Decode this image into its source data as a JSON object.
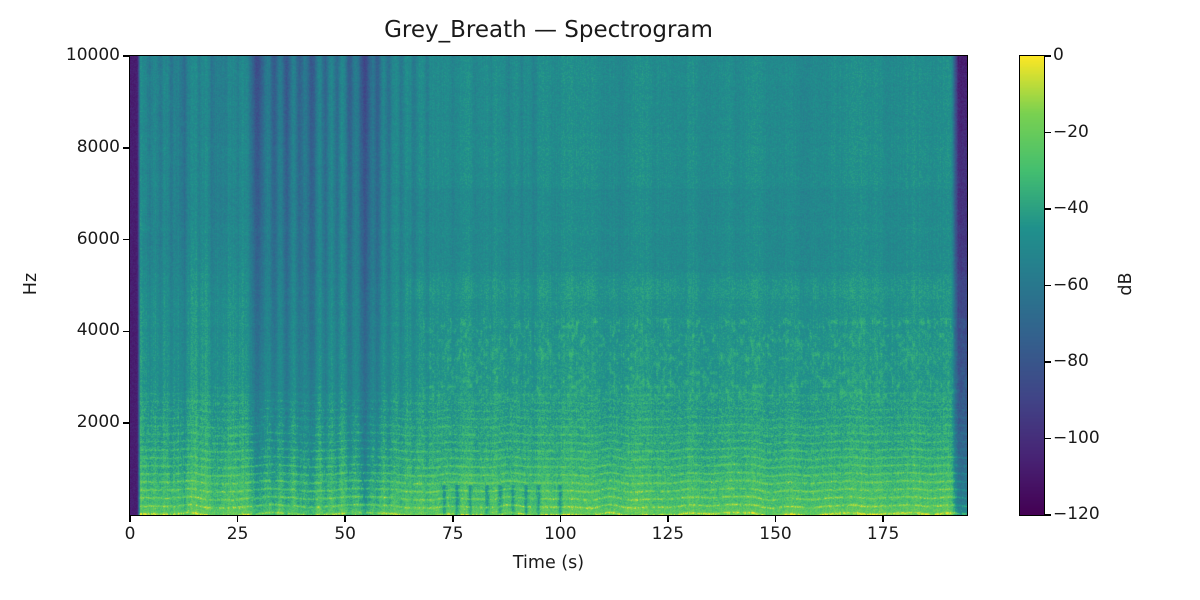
{
  "figure": {
    "background": "#ffffff",
    "axis_color": "#000000",
    "text_color": "#1a1a1a"
  },
  "chart_data": {
    "type": "heatmap",
    "title": "Grey_Breath — Spectrogram",
    "xlabel": "Time (s)",
    "ylabel": "Hz",
    "x_ticks": [
      0,
      25,
      50,
      75,
      100,
      125,
      150,
      175
    ],
    "y_ticks": [
      2000,
      4000,
      6000,
      8000,
      10000
    ],
    "x_range": [
      0,
      194.5
    ],
    "y_range": [
      0,
      10000
    ],
    "grid": false,
    "legend": "none",
    "colorbar": {
      "label": "dB",
      "ticks": [
        0,
        -20,
        -40,
        -60,
        -80,
        -100,
        -120
      ],
      "vmin": -120,
      "vmax": 0,
      "colormap": "viridis",
      "position": "right"
    },
    "colormap_stops": [
      "#440154",
      "#482475",
      "#414487",
      "#355f8d",
      "#29788e",
      "#20918c",
      "#44bf70",
      "#7ad151",
      "#fde725"
    ],
    "spectrogram_model": {
      "description": "Dense viridis spectrogram: teal background (~-45 dB) at mid/high frequencies, bright green-yellow harmonic dash bands below ~2500 Hz (~-30 to -20 dB), dark purple silence columns at t<2 s and t>191 s (~-110 dB), cluster of strong dark vertical stripes at t=28-62 s, lighter narrow stripes t=4-25 and 63-95, faint darker columns near t=115 and t=152-163, bright speckled patch 2500-4300 Hz after t=68 s, slightly brighter line near 4900 Hz after t=64 s.",
      "base_profile_hz_db": [
        [
          0,
          -26
        ],
        [
          200,
          -28
        ],
        [
          600,
          -31
        ],
        [
          1000,
          -35
        ],
        [
          1500,
          -38
        ],
        [
          2000,
          -40
        ],
        [
          2600,
          -42
        ],
        [
          3200,
          -43
        ],
        [
          4000,
          -44
        ],
        [
          5000,
          -45.5
        ],
        [
          6500,
          -46.5
        ],
        [
          8000,
          -47
        ],
        [
          10000,
          -47.5
        ]
      ],
      "vertical_stripes": [
        [
          4.5,
          0.8,
          9
        ],
        [
          7,
          0.6,
          8
        ],
        [
          9.5,
          0.7,
          11
        ],
        [
          12.5,
          0.9,
          13
        ],
        [
          16,
          0.5,
          7
        ],
        [
          19,
          0.7,
          10
        ],
        [
          22,
          0.5,
          7
        ],
        [
          25,
          0.5,
          6
        ],
        [
          29.5,
          1.7,
          40
        ],
        [
          33.5,
          1.0,
          30
        ],
        [
          36.3,
          1.2,
          34
        ],
        [
          39.3,
          1.0,
          26
        ],
        [
          42.3,
          1.2,
          33
        ],
        [
          45.3,
          0.9,
          24
        ],
        [
          48,
          0.8,
          20
        ],
        [
          51,
          1.0,
          28
        ],
        [
          54.5,
          1.5,
          38
        ],
        [
          57.5,
          0.9,
          26
        ],
        [
          60,
          0.8,
          18
        ],
        [
          63,
          0.6,
          12
        ],
        [
          66,
          0.7,
          13
        ],
        [
          69,
          0.5,
          9
        ],
        [
          75,
          0.5,
          5
        ],
        [
          80,
          0.6,
          6
        ],
        [
          84,
          0.5,
          5
        ],
        [
          88,
          0.6,
          7
        ],
        [
          91,
          0.5,
          6
        ],
        [
          94,
          0.6,
          7
        ],
        [
          115,
          2.5,
          4
        ],
        [
          141,
          1.2,
          4
        ],
        [
          156,
          3,
          5
        ],
        [
          162,
          1.2,
          4
        ],
        [
          176,
          0.8,
          3
        ],
        [
          183,
          0.6,
          3
        ]
      ],
      "low_freq_notches_s": [
        73,
        76,
        79,
        83,
        86,
        89,
        92,
        95,
        100
      ],
      "harmonic_spacing_hz": 175,
      "start_silence_end_s": 1.8,
      "end_silence_start_s": 191,
      "silence_db": -110,
      "noise_db": 5,
      "seed": 1337
    }
  }
}
